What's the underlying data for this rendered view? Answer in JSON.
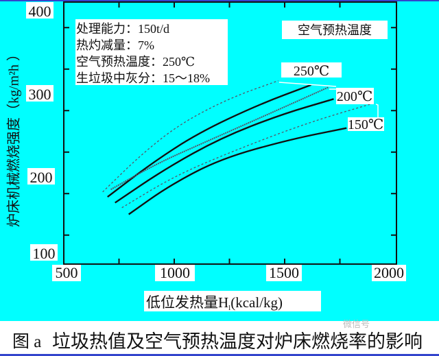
{
  "chart_data": {
    "type": "line",
    "xlabel": "低位发热量H",
    "xlabel_sub": "l",
    "xlabel_unit": "(kcal/kg)",
    "ylabel": "炉床机械燃烧强度（kg/m²h ）",
    "xlim": [
      500,
      2000
    ],
    "ylim": [
      100,
      400
    ],
    "x_ticks": [
      "500",
      "1000",
      "1500",
      "2000"
    ],
    "y_ticks": [
      "100",
      "200",
      "300",
      "400"
    ],
    "grid": false,
    "legend_title": "空气预热温度",
    "info_lines": [
      "处理能力：150t/d",
      "热灼减量：7%",
      "空气预热温度：250℃",
      "生垃圾中灰分：15～18%"
    ],
    "series": [
      {
        "name": "250℃",
        "style": "dashed",
        "x": [
          676,
          850,
          1026,
          1250,
          1471
        ],
        "y": [
          177,
          222,
          259,
          290,
          311
        ]
      },
      {
        "style": "solid",
        "x": [
          698,
          900,
          1109,
          1380,
          1620
        ],
        "y": [
          171,
          212,
          248,
          282,
          306
        ]
      },
      {
        "name": "200℃",
        "style": "dotted-heavy",
        "x": [
          713,
          920,
          1131,
          1420,
          1697
        ],
        "y": [
          180,
          211,
          236,
          270,
          303
        ]
      },
      {
        "style": "solid",
        "x": [
          732,
          960,
          1211,
          1480,
          1722
        ],
        "y": [
          164,
          205,
          242,
          270,
          289
        ]
      },
      {
        "style": "dashed",
        "x": [
          763,
          1000,
          1273,
          1600,
          1904
        ],
        "y": [
          158,
          196,
          227,
          260,
          284
        ]
      },
      {
        "name": "150℃",
        "style": "solid",
        "x": [
          794,
          980,
          1211,
          1520,
          1780
        ],
        "y": [
          150,
          185,
          217,
          240,
          254
        ]
      }
    ],
    "colors": {
      "background": "#00ffff",
      "line": "#111111"
    }
  },
  "caption": {
    "figure_label": "图 a",
    "text": "垃圾热值及空气预热温度对炉床燃烧率的影响"
  },
  "watermark": "微信号"
}
